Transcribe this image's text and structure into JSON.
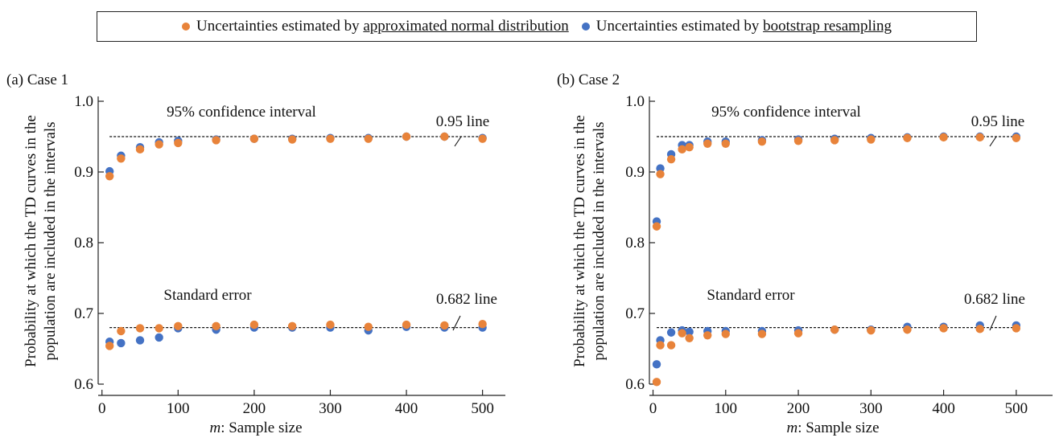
{
  "legend": {
    "orange": {
      "prefix": "Uncertainties estimated by ",
      "method": "approximated normal distribution",
      "color": "#e8833a"
    },
    "blue": {
      "prefix": "Uncertainties estimated by ",
      "method": "bootstrap resampling",
      "color": "#4472c4"
    }
  },
  "chart_data": [
    {
      "type": "scatter",
      "panel_label": "(a) Case 1",
      "xlabel_italic": "m",
      "xlabel_rest": ": Sample size",
      "ylabel_line1": "Probability at which the TD curves in the",
      "ylabel_line2": "population are included in the intervals",
      "xlim": [
        -5,
        530
      ],
      "ylim": [
        0.6,
        1.0
      ],
      "xticks": [
        0,
        100,
        200,
        300,
        400,
        500
      ],
      "yticks": [
        0.6,
        0.7,
        0.8,
        0.9,
        1.0
      ],
      "ytick_labels": [
        "0.6",
        "0.7",
        "0.8",
        "0.9",
        "1.0"
      ],
      "annotations": [
        {
          "text": "95% confidence interval",
          "kind": "group-title"
        },
        {
          "text": "Standard error",
          "kind": "group-title"
        },
        {
          "text": "0.95 line",
          "kind": "reference-label"
        },
        {
          "text": "0.682 line",
          "kind": "reference-label"
        }
      ],
      "reference_lines": [
        0.95,
        0.68
      ],
      "x": [
        10,
        25,
        50,
        75,
        100,
        150,
        200,
        250,
        300,
        350,
        400,
        450,
        500
      ],
      "series": [
        {
          "key": "blue",
          "color": "#4472c4",
          "ci95": [
            0.901,
            0.923,
            0.935,
            0.942,
            0.944,
            0.946,
            0.947,
            0.947,
            0.948,
            0.948,
            0.95,
            0.95,
            0.948
          ],
          "se": [
            0.66,
            0.658,
            0.662,
            0.666,
            0.679,
            0.677,
            0.68,
            0.68,
            0.68,
            0.676,
            0.681,
            0.68,
            0.68
          ]
        },
        {
          "key": "orange",
          "color": "#e8833a",
          "ci95": [
            0.894,
            0.919,
            0.932,
            0.939,
            0.941,
            0.945,
            0.947,
            0.946,
            0.947,
            0.947,
            0.95,
            0.95,
            0.947
          ],
          "se": [
            0.654,
            0.675,
            0.679,
            0.679,
            0.682,
            0.682,
            0.684,
            0.682,
            0.684,
            0.681,
            0.684,
            0.683,
            0.685
          ]
        }
      ]
    },
    {
      "type": "scatter",
      "panel_label": "(b) Case 2",
      "xlabel_italic": "m",
      "xlabel_rest": ": Sample size",
      "ylabel_line1": "Probability at which the TD curves in the",
      "ylabel_line2": "population are included in the intervals",
      "xlim": [
        -5,
        550
      ],
      "ylim": [
        0.6,
        1.0
      ],
      "xticks": [
        0,
        100,
        200,
        300,
        400,
        500
      ],
      "yticks": [
        0.6,
        0.7,
        0.8,
        0.9,
        1.0
      ],
      "ytick_labels": [
        "0.6",
        "0.7",
        "0.8",
        "0.9",
        "1.0"
      ],
      "annotations": [
        {
          "text": "95% confidence interval",
          "kind": "group-title"
        },
        {
          "text": "Standard error",
          "kind": "group-title"
        },
        {
          "text": "0.95 line",
          "kind": "reference-label"
        },
        {
          "text": "0.682 line",
          "kind": "reference-label"
        }
      ],
      "reference_lines": [
        0.95,
        0.68
      ],
      "x": [
        5,
        10,
        25,
        40,
        50,
        75,
        100,
        150,
        200,
        250,
        300,
        350,
        400,
        450,
        500
      ],
      "series": [
        {
          "key": "blue",
          "color": "#4472c4",
          "ci95": [
            0.83,
            0.905,
            0.925,
            0.938,
            0.938,
            0.943,
            0.943,
            0.945,
            0.946,
            0.947,
            0.948,
            0.949,
            0.95,
            0.95,
            0.95
          ],
          "se": [
            0.628,
            0.662,
            0.673,
            0.676,
            0.674,
            0.675,
            0.675,
            0.675,
            0.676,
            0.677,
            0.677,
            0.681,
            0.681,
            0.683,
            0.683
          ]
        },
        {
          "key": "orange",
          "color": "#e8833a",
          "ci95": [
            0.823,
            0.897,
            0.918,
            0.932,
            0.935,
            0.94,
            0.94,
            0.943,
            0.944,
            0.945,
            0.946,
            0.948,
            0.949,
            0.949,
            0.948
          ],
          "se": [
            0.603,
            0.655,
            0.655,
            0.672,
            0.665,
            0.669,
            0.671,
            0.671,
            0.672,
            0.677,
            0.676,
            0.677,
            0.679,
            0.678,
            0.679
          ]
        }
      ]
    }
  ]
}
